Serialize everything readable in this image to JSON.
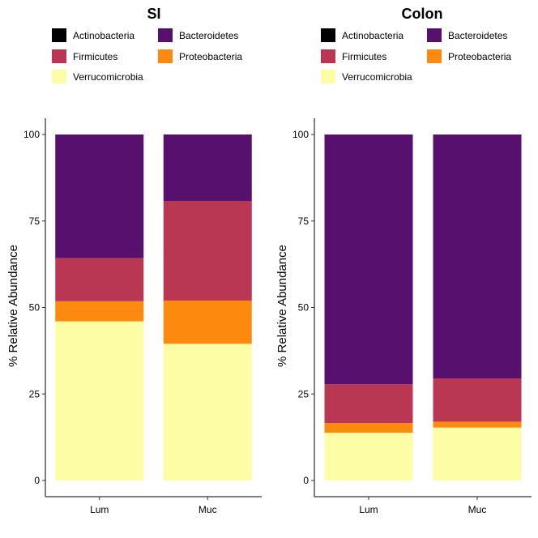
{
  "chart_data": [
    {
      "type": "bar",
      "stacked": true,
      "title": "SI",
      "ylabel": "% Relative Abundance",
      "xlabel": "",
      "categories": [
        "Lum",
        "Muc"
      ],
      "ylim": [
        0,
        100
      ],
      "yticks": [
        0,
        25,
        50,
        75,
        100
      ],
      "legend": "top",
      "series": [
        {
          "name": "Verrucomicrobia",
          "color": "#FCFDA4",
          "values": [
            46,
            39.5
          ]
        },
        {
          "name": "Proteobacteria",
          "color": "#FB8A0E",
          "values": [
            5.8,
            12.5
          ]
        },
        {
          "name": "Firmicutes",
          "color": "#BA3753",
          "values": [
            12.5,
            28.8
          ]
        },
        {
          "name": "Bacteroidetes",
          "color": "#57106E",
          "values": [
            35.7,
            19.2
          ]
        },
        {
          "name": "Actinobacteria",
          "color": "#000004",
          "values": [
            0,
            0
          ]
        }
      ]
    },
    {
      "type": "bar",
      "stacked": true,
      "title": "Colon",
      "ylabel": "% Relative Abundance",
      "xlabel": "",
      "categories": [
        "Lum",
        "Muc"
      ],
      "ylim": [
        0,
        100
      ],
      "yticks": [
        0,
        25,
        50,
        75,
        100
      ],
      "legend": "top",
      "series": [
        {
          "name": "Verrucomicrobia",
          "color": "#FCFDA4",
          "values": [
            13.8,
            15.3
          ]
        },
        {
          "name": "Proteobacteria",
          "color": "#FB8A0E",
          "values": [
            2.8,
            1.7
          ]
        },
        {
          "name": "Firmicutes",
          "color": "#BA3753",
          "values": [
            11.2,
            12.5
          ]
        },
        {
          "name": "Bacteroidetes",
          "color": "#57106E",
          "values": [
            72.2,
            70.5
          ]
        },
        {
          "name": "Actinobacteria",
          "color": "#000004",
          "values": [
            0,
            0
          ]
        }
      ]
    }
  ],
  "legend_order": [
    "Actinobacteria",
    "Bacteroidetes",
    "Firmicutes",
    "Proteobacteria",
    "Verrucomicrobia"
  ]
}
